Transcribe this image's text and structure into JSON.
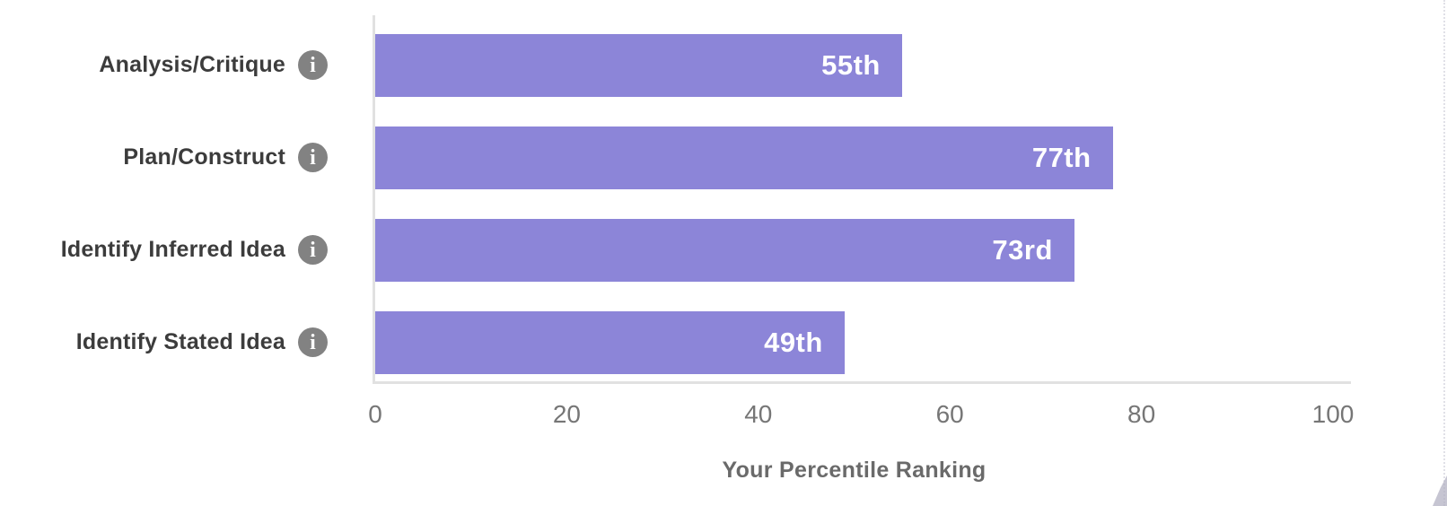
{
  "chart_data": {
    "type": "bar",
    "orientation": "horizontal",
    "categories": [
      "Analysis/Critique",
      "Plan/Construct",
      "Identify Inferred Idea",
      "Identify Stated Idea"
    ],
    "values": [
      55,
      77,
      73,
      49
    ],
    "value_labels": [
      "55th",
      "77th",
      "73rd",
      "49th"
    ],
    "xlabel": "Your Percentile Ranking",
    "xlim": [
      0,
      100
    ],
    "tick_values": [
      0,
      20,
      40,
      60,
      80,
      100
    ],
    "tick_labels": [
      "0",
      "20",
      "40",
      "60",
      "80",
      "100"
    ],
    "grid": false,
    "legend": false,
    "bar_color": "#8C85D8",
    "value_label_color": "#FFFFFF",
    "axis_line_color": "#E1E1E1",
    "tick_label_color": "#767676",
    "category_label_color": "#3C3C3C",
    "xlabel_color": "#6A6A6A",
    "info_icon_color": "#828282"
  },
  "icons": {
    "info_glyph": "i"
  }
}
